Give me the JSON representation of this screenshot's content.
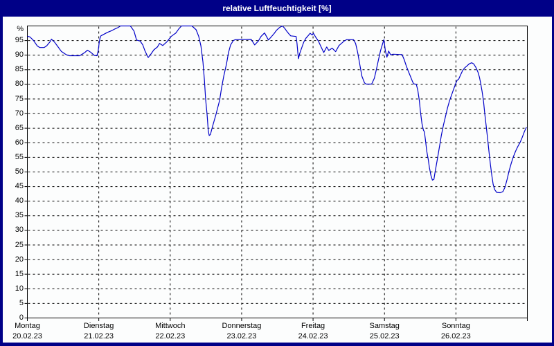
{
  "title": "relative Luftfeuchtigkeit [%]",
  "colors": {
    "frame": "#000087",
    "background": "#fcfdfd",
    "line": "#0000c8",
    "grid": "#000000",
    "text": "#000000",
    "title_text": "#ffffff"
  },
  "chart_data": {
    "type": "line",
    "title": "relative Luftfeuchtigkeit [%]",
    "ylabel": "%",
    "ylim": [
      0,
      100
    ],
    "ytick_step": 5,
    "yticks": [
      0,
      5,
      10,
      15,
      20,
      25,
      30,
      35,
      40,
      45,
      50,
      55,
      60,
      65,
      70,
      75,
      80,
      85,
      90,
      95
    ],
    "y_unit_label": "%",
    "grid": "dashed",
    "legend": "none",
    "x_unit": "hours since Montag 20.02.23 00:00",
    "xlim": [
      0,
      168
    ],
    "x_day_labels": [
      {
        "day": "Montag",
        "date": "20.02.23"
      },
      {
        "day": "Dienstag",
        "date": "21.02.23"
      },
      {
        "day": "Mittwoch",
        "date": "22.02.23"
      },
      {
        "day": "Donnerstag",
        "date": "23.02.23"
      },
      {
        "day": "Freitag",
        "date": "24.02.23"
      },
      {
        "day": "Samstag",
        "date": "25.02.23"
      },
      {
        "day": "Sonntag",
        "date": "26.02.23"
      }
    ],
    "series": [
      {
        "name": "relative Luftfeuchtigkeit",
        "points": [
          [
            0,
            96.5
          ],
          [
            0.9,
            96.2
          ],
          [
            2.1,
            95.0
          ],
          [
            3.3,
            93.2
          ],
          [
            4.2,
            92.6
          ],
          [
            5.6,
            92.6
          ],
          [
            6.5,
            93.2
          ],
          [
            7.7,
            94.7
          ],
          [
            8.1,
            95.5
          ],
          [
            9.1,
            94.5
          ],
          [
            10.2,
            93.0
          ],
          [
            11.4,
            91.3
          ],
          [
            13.0,
            90.2
          ],
          [
            14.2,
            89.8
          ],
          [
            17.6,
            89.8
          ],
          [
            19.3,
            90.9
          ],
          [
            20.2,
            91.7
          ],
          [
            21.4,
            90.9
          ],
          [
            22.5,
            89.9
          ],
          [
            23.4,
            89.8
          ],
          [
            23.8,
            91.5
          ],
          [
            24.1,
            94.0
          ],
          [
            24.4,
            95.8
          ],
          [
            24.7,
            96.6
          ],
          [
            25.8,
            97.2
          ],
          [
            26.9,
            97.8
          ],
          [
            28.1,
            98.3
          ],
          [
            29.3,
            98.9
          ],
          [
            30.4,
            99.4
          ],
          [
            31.3,
            100.0
          ],
          [
            34.6,
            100.0
          ],
          [
            35.8,
            98.3
          ],
          [
            36.7,
            95.2
          ],
          [
            37.9,
            94.8
          ],
          [
            38.8,
            93.5
          ],
          [
            39.5,
            91.5
          ],
          [
            40.2,
            90.0
          ],
          [
            40.6,
            89.2
          ],
          [
            41.6,
            90.5
          ],
          [
            42.5,
            91.8
          ],
          [
            43.7,
            92.8
          ],
          [
            44.4,
            94.0
          ],
          [
            45.5,
            93.3
          ],
          [
            46.9,
            94.6
          ],
          [
            48.3,
            96.4
          ],
          [
            49.9,
            97.6
          ],
          [
            50.9,
            99.0
          ],
          [
            51.8,
            100.0
          ],
          [
            55.3,
            100.0
          ],
          [
            56.7,
            98.7
          ],
          [
            57.6,
            96.4
          ],
          [
            58.3,
            93.2
          ],
          [
            59.0,
            87.6
          ],
          [
            59.5,
            81.4
          ],
          [
            59.9,
            75.0
          ],
          [
            60.4,
            69.5
          ],
          [
            60.8,
            64.0
          ],
          [
            61.1,
            62.5
          ],
          [
            61.5,
            62.8
          ],
          [
            62.2,
            65.5
          ],
          [
            63.4,
            69.8
          ],
          [
            64.6,
            74.5
          ],
          [
            65.3,
            79.0
          ],
          [
            66.0,
            82.8
          ],
          [
            66.9,
            86.9
          ],
          [
            67.6,
            90.9
          ],
          [
            68.3,
            93.5
          ],
          [
            69.2,
            95.0
          ],
          [
            69.9,
            95.3
          ],
          [
            75.2,
            95.4
          ],
          [
            76.4,
            93.5
          ],
          [
            77.6,
            94.8
          ],
          [
            78.5,
            96.4
          ],
          [
            79.7,
            97.6
          ],
          [
            80.3,
            96.5
          ],
          [
            81.0,
            95.2
          ],
          [
            81.9,
            96.2
          ],
          [
            82.9,
            97.4
          ],
          [
            83.8,
            98.6
          ],
          [
            84.8,
            99.5
          ],
          [
            85.7,
            100.0
          ],
          [
            86.4,
            99.3
          ],
          [
            87.1,
            98.3
          ],
          [
            87.8,
            97.4
          ],
          [
            88.5,
            96.6
          ],
          [
            90.3,
            96.4
          ],
          [
            90.6,
            94.0
          ],
          [
            90.9,
            90.5
          ],
          [
            91.1,
            88.8
          ],
          [
            91.5,
            90.5
          ],
          [
            92.2,
            92.5
          ],
          [
            92.9,
            94.5
          ],
          [
            93.6,
            95.8
          ],
          [
            94.3,
            96.6
          ],
          [
            95.0,
            97.5
          ],
          [
            95.7,
            96.9
          ],
          [
            96.1,
            97.5
          ],
          [
            96.8,
            96.3
          ],
          [
            97.8,
            94.8
          ],
          [
            98.7,
            92.8
          ],
          [
            99.6,
            90.9
          ],
          [
            100.6,
            92.8
          ],
          [
            101.3,
            91.6
          ],
          [
            102.4,
            92.4
          ],
          [
            103.6,
            91.2
          ],
          [
            104.7,
            93.3
          ],
          [
            106.4,
            94.8
          ],
          [
            107.3,
            95.3
          ],
          [
            109.6,
            95.3
          ],
          [
            110.3,
            94.0
          ],
          [
            111.0,
            90.9
          ],
          [
            111.7,
            86.9
          ],
          [
            112.4,
            82.8
          ],
          [
            113.3,
            80.5
          ],
          [
            113.8,
            80.1
          ],
          [
            115.7,
            80.1
          ],
          [
            116.6,
            82.1
          ],
          [
            117.3,
            85.2
          ],
          [
            118.0,
            88.5
          ],
          [
            118.7,
            91.6
          ],
          [
            119.4,
            94.0
          ],
          [
            119.8,
            95.3
          ],
          [
            120.3,
            91.5
          ],
          [
            120.8,
            89.3
          ],
          [
            121.4,
            91.4
          ],
          [
            122.1,
            90.1
          ],
          [
            122.8,
            90.3
          ],
          [
            125.9,
            90.2
          ],
          [
            126.6,
            88.5
          ],
          [
            127.3,
            86.4
          ],
          [
            128.0,
            84.5
          ],
          [
            128.7,
            82.8
          ],
          [
            129.4,
            81.0
          ],
          [
            129.8,
            80.2
          ],
          [
            130.7,
            80.0
          ],
          [
            131.2,
            78.0
          ],
          [
            131.7,
            74.5
          ],
          [
            132.1,
            70.5
          ],
          [
            132.6,
            66.5
          ],
          [
            133.1,
            64.3
          ],
          [
            133.4,
            63.8
          ],
          [
            133.8,
            60.7
          ],
          [
            134.2,
            57.2
          ],
          [
            134.7,
            54.3
          ],
          [
            135.1,
            51.5
          ],
          [
            135.6,
            48.8
          ],
          [
            136.1,
            47.2
          ],
          [
            136.6,
            47.5
          ],
          [
            137.0,
            50.0
          ],
          [
            137.7,
            54.0
          ],
          [
            138.4,
            58.2
          ],
          [
            139.1,
            62.5
          ],
          [
            139.8,
            66.0
          ],
          [
            140.5,
            69.0
          ],
          [
            141.2,
            72.0
          ],
          [
            141.9,
            74.5
          ],
          [
            142.6,
            76.5
          ],
          [
            143.3,
            78.5
          ],
          [
            144.0,
            80.5
          ],
          [
            144.4,
            81.4
          ],
          [
            144.9,
            81.7
          ],
          [
            145.6,
            83.3
          ],
          [
            146.3,
            84.8
          ],
          [
            147.0,
            85.7
          ],
          [
            147.7,
            86.3
          ],
          [
            148.4,
            87.0
          ],
          [
            149.3,
            87.4
          ],
          [
            150.0,
            87.0
          ],
          [
            150.7,
            85.8
          ],
          [
            151.4,
            84.2
          ],
          [
            151.9,
            82.5
          ],
          [
            152.3,
            80.5
          ],
          [
            152.8,
            77.5
          ],
          [
            153.3,
            74.0
          ],
          [
            153.7,
            70.0
          ],
          [
            154.2,
            65.5
          ],
          [
            154.7,
            61.0
          ],
          [
            155.1,
            57.0
          ],
          [
            155.6,
            52.5
          ],
          [
            156.1,
            48.5
          ],
          [
            156.5,
            45.8
          ],
          [
            157.0,
            44.0
          ],
          [
            157.7,
            43.0
          ],
          [
            158.9,
            42.9
          ],
          [
            159.8,
            43.3
          ],
          [
            160.5,
            44.8
          ],
          [
            161.2,
            47.5
          ],
          [
            161.9,
            50.5
          ],
          [
            162.6,
            53.0
          ],
          [
            163.3,
            55.2
          ],
          [
            164.0,
            57.0
          ],
          [
            164.7,
            58.5
          ],
          [
            165.6,
            60.2
          ],
          [
            166.3,
            61.9
          ],
          [
            167.0,
            63.8
          ],
          [
            167.7,
            65.3
          ]
        ]
      }
    ]
  }
}
